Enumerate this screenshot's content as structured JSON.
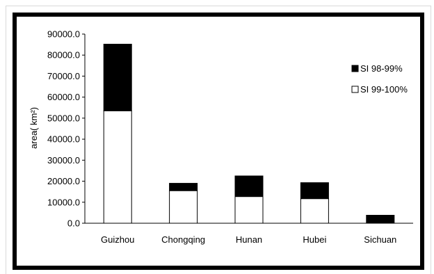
{
  "chart_data": {
    "type": "bar",
    "stacked": true,
    "categories": [
      "Guizhou",
      "Chongqing",
      "Hunan",
      "Hubei",
      "Sichuan"
    ],
    "series": [
      {
        "name": "SI 99-100%",
        "values": [
          53500,
          15500,
          12700,
          11700,
          0
        ],
        "color": "#ffffff"
      },
      {
        "name": "SI 98-99%",
        "values": [
          31700,
          3500,
          9800,
          7600,
          3800
        ],
        "color": "#000000"
      }
    ],
    "title": "",
    "xlabel": "",
    "ylabel": "area( km²)",
    "ylim": [
      0,
      90000
    ],
    "yticks": [
      "0.0",
      "10000.0",
      "20000.0",
      "30000.0",
      "40000.0",
      "50000.0",
      "60000.0",
      "70000.0",
      "80000.0",
      "90000.0"
    ],
    "legend": {
      "placement": "right",
      "entries": [
        "SI 98-99%",
        "SI 99-100%"
      ]
    },
    "grid": false
  }
}
